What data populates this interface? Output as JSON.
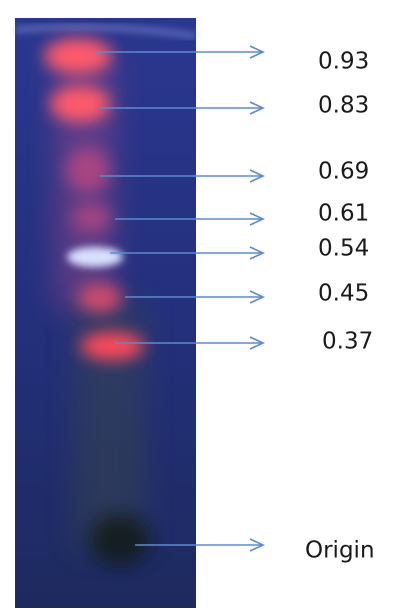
{
  "annotations": [
    {
      "label": "0.93"
    },
    {
      "label": "0.83"
    },
    {
      "label": "0.69"
    },
    {
      "label": "0.61"
    },
    {
      "label": "0.54"
    },
    {
      "label": "0.45"
    },
    {
      "label": "0.37"
    },
    {
      "label": "Origin"
    }
  ]
}
